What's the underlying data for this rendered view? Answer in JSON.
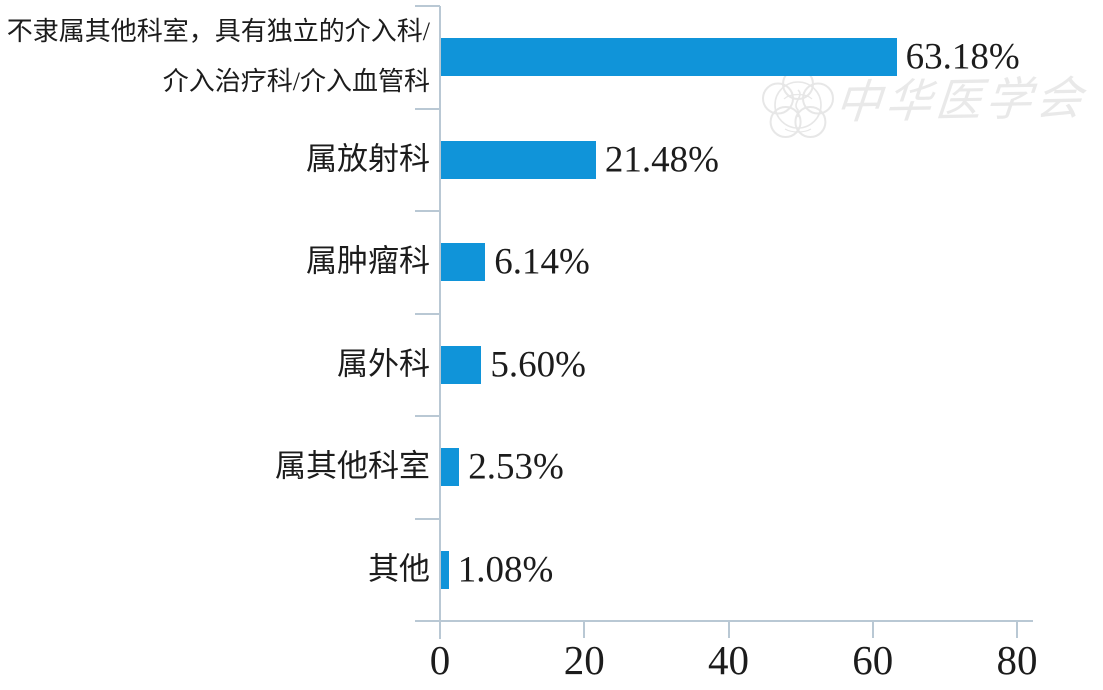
{
  "watermark": {
    "org_name": "中华医学会",
    "logo_icon": "cma-emblem-icon"
  },
  "colors": {
    "bar": "#1094d9",
    "axis": "#b9c8d4",
    "text": "#1c1c1c",
    "watermark": "#e9e9e9"
  },
  "chart_data": {
    "type": "bar",
    "orientation": "horizontal",
    "title": "",
    "xlabel": "",
    "ylabel": "",
    "xlim": [
      0,
      80
    ],
    "x_ticks": [
      0,
      20,
      40,
      60,
      80
    ],
    "grid": false,
    "legend": false,
    "categories": [
      "不隶属其他科室，具有独立的介入科/\n介入治疗科/介入血管科",
      "属放射科",
      "属肿瘤科",
      "属外科",
      "属其他科室",
      "其他"
    ],
    "values": [
      63.18,
      21.48,
      6.14,
      5.6,
      2.53,
      1.08
    ],
    "value_labels": [
      "63.18%",
      "21.48%",
      "6.14%",
      "5.60%",
      "2.53%",
      "1.08%"
    ]
  }
}
